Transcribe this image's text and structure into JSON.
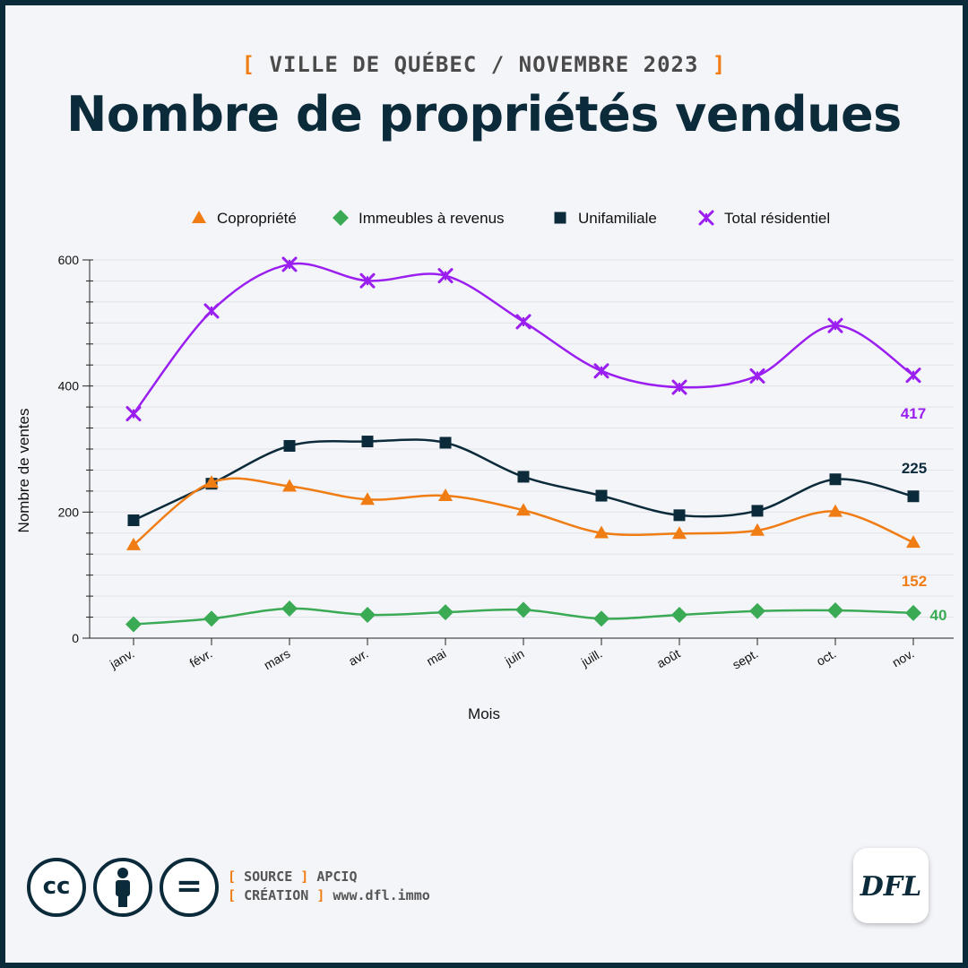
{
  "header": {
    "kicker": "VILLE DE QUÉBEC / NOVEMBRE 2023",
    "title": "Nombre de propriétés vendues"
  },
  "chart_data": {
    "type": "line",
    "xlabel": "Mois",
    "ylabel": "Nombre de ventes",
    "ylim": [
      0,
      600
    ],
    "y_ticks": [
      0,
      200,
      400,
      600
    ],
    "grid": true,
    "legend_position": "top",
    "categories": [
      "janv.",
      "févr.",
      "mars",
      "avr.",
      "mai",
      "juin",
      "juill.",
      "août",
      "sept.",
      "oct.",
      "nov."
    ],
    "series": [
      {
        "name": "Copropriété",
        "color": "#f07c14",
        "marker": "triangle",
        "values": [
          148,
          247,
          241,
          220,
          226,
          203,
          167,
          166,
          171,
          201,
          152
        ],
        "end_label": "152"
      },
      {
        "name": "Immeubles à revenus",
        "color": "#3aaa55",
        "marker": "diamond",
        "values": [
          22,
          31,
          47,
          37,
          41,
          45,
          31,
          37,
          43,
          44,
          40
        ],
        "end_label": "40"
      },
      {
        "name": "Unifamiliale",
        "color": "#0b2a3a",
        "marker": "square",
        "values": [
          187,
          245,
          305,
          312,
          310,
          256,
          226,
          195,
          202,
          252,
          225
        ],
        "end_label": "225"
      },
      {
        "name": "Total résidentiel",
        "color": "#9a1ef0",
        "marker": "cross",
        "values": [
          356,
          519,
          593,
          567,
          575,
          502,
          424,
          398,
          416,
          496,
          417
        ],
        "end_label": "417"
      }
    ]
  },
  "footer": {
    "source_label": "SOURCE",
    "source_value": "APCIQ",
    "creation_label": "CRÉATION",
    "creation_value": "www.dfl.immo",
    "license_cc": "cc",
    "license_equals": "=",
    "logo_text": "DFL"
  },
  "icons": [
    "cc-license-icon",
    "attribution-icon",
    "no-derivatives-icon"
  ]
}
